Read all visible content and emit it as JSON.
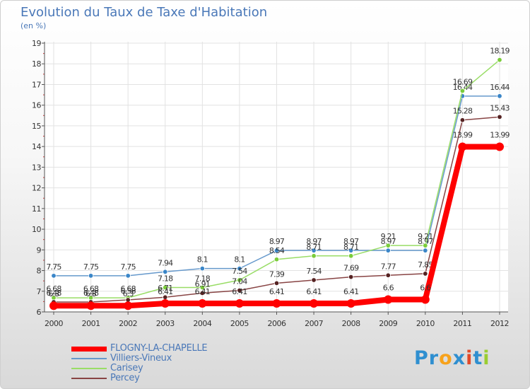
{
  "header": {
    "title": "Evolution du Taux de Taxe d'Habitation",
    "unit": "(en %)"
  },
  "logo": {
    "text": "Proxiti",
    "letters": [
      "P",
      "r",
      "o",
      "x",
      "i",
      "t",
      "i"
    ],
    "colors": [
      "#2f8fd0",
      "#2f8fd0",
      "#f7a21b",
      "#2f8fd0",
      "#e24a2a",
      "#2f8fd0",
      "#9acd32"
    ]
  },
  "chart_data": {
    "type": "line",
    "title": "Evolution du Taux de Taxe d'Habitation",
    "ylabel": "(en %)",
    "xlabel": "",
    "ylim": [
      6,
      19
    ],
    "yticks": [
      "6",
      "7",
      "8",
      "9",
      "10",
      "11",
      "12",
      "13",
      "14",
      "15",
      "16",
      "17",
      "18",
      "19"
    ],
    "categories": [
      "2000",
      "2001",
      "2002",
      "2003",
      "2004",
      "2005",
      "2006",
      "2007",
      "2008",
      "2009",
      "2010",
      "2011",
      "2012"
    ],
    "series": [
      {
        "name": "Villiers-Vineux",
        "color": "#6699cc",
        "marker": "#3a86c8",
        "values": [
          7.75,
          7.75,
          7.75,
          7.94,
          8.1,
          8.1,
          8.97,
          8.97,
          8.97,
          8.97,
          8.97,
          16.44,
          16.44
        ],
        "labels": [
          "7.75",
          "7.75",
          "7.75",
          "7.94",
          "8.1",
          "8.1",
          "8.97",
          "8.97",
          "8.97",
          "8.97",
          "8.97",
          "16.44",
          "16.44"
        ]
      },
      {
        "name": "Carisey",
        "color": "#99dd66",
        "marker": "#7acc3a",
        "values": [
          6.68,
          6.68,
          6.68,
          7.18,
          7.18,
          7.54,
          8.54,
          8.71,
          8.71,
          9.21,
          9.21,
          16.69,
          18.19
        ],
        "labels": [
          "6.68",
          "6.68",
          "6.68",
          "7.18",
          "7.18",
          "7.54",
          "8.54",
          "8.71",
          "8.71",
          "9.21",
          "9.21",
          "16.69",
          "18.19"
        ]
      },
      {
        "name": "Percey",
        "color": "#884444",
        "marker": "#552222",
        "values": [
          6.48,
          6.48,
          6.58,
          6.71,
          6.91,
          7.04,
          7.39,
          7.54,
          7.69,
          7.77,
          7.85,
          15.28,
          15.43
        ],
        "labels": [
          "6.48",
          "6.48",
          "6.58",
          "6.71",
          "6.91",
          "7.04",
          "7.39",
          "7.54",
          "7.69",
          "7.77",
          "7.85",
          "15.28",
          "15.43"
        ]
      },
      {
        "name": "FLOGNY-LA-CHAPELLE",
        "color": "#ff0000",
        "marker": "#ff0000",
        "values": [
          6.3,
          6.3,
          6.3,
          6.41,
          6.41,
          6.41,
          6.41,
          6.41,
          6.41,
          6.6,
          6.6,
          13.99,
          13.99
        ],
        "labels": [
          "6.3",
          "6.3",
          "6.3",
          "6.41",
          "6.41",
          "6.41",
          "6.41",
          "6.41",
          "6.41",
          "6.6",
          "6.6",
          "13.99",
          "13.99"
        ]
      }
    ],
    "legend": [
      "FLOGNY-LA-CHAPELLE",
      "Villiers-Vineux",
      "Carisey",
      "Percey"
    ],
    "legend_position": "bottom-left"
  }
}
